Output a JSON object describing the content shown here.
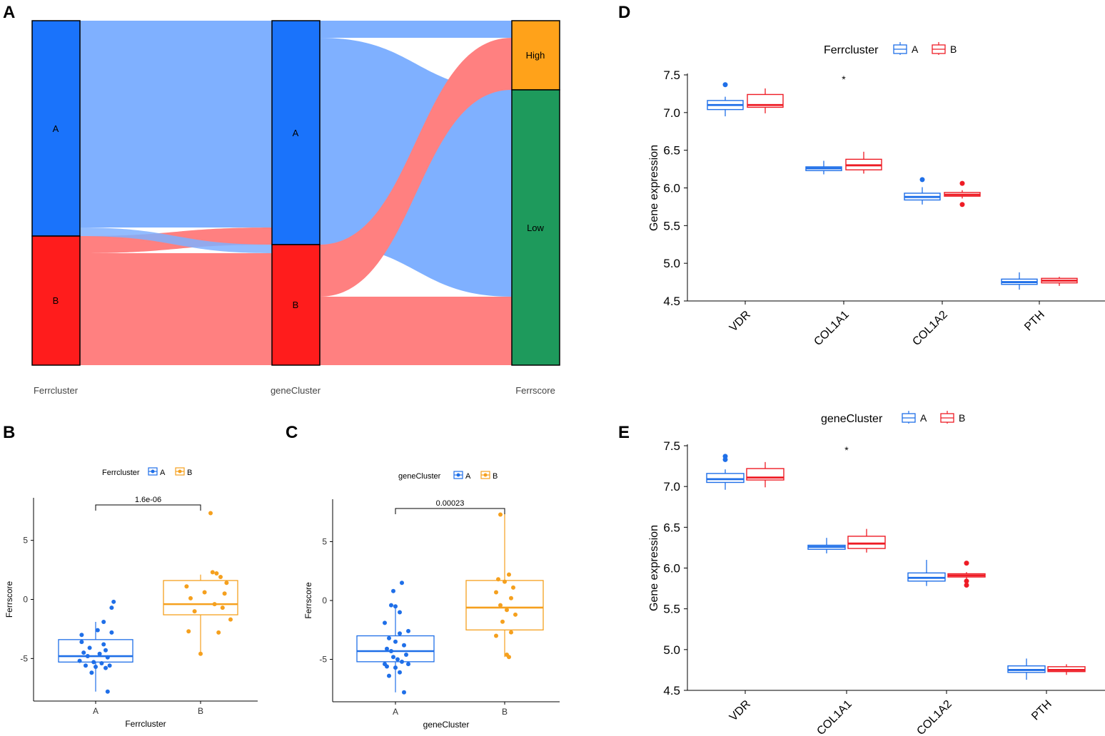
{
  "colors": {
    "blue": "#1f6fe8",
    "red": "#ee1c25",
    "orange": "#f5a01e",
    "green": "#1f9a5a",
    "sankey_blue_node": "#1a73fb",
    "sankey_red_node": "#ff1c1c",
    "sankey_blue_flow": "#7fb0ff",
    "sankey_red_flow": "#ff8080",
    "sankey_purple_flow": "#b85075",
    "sankey_high": "#ffa21a",
    "sankey_low": "#1e9a5c"
  },
  "panels": {
    "a": "A",
    "b": "B",
    "c": "C",
    "d": "D",
    "e": "E"
  },
  "chart_data": [
    {
      "id": "A",
      "type": "sankey",
      "axes": [
        "Ferrcluster",
        "geneCluster",
        "Ferrscore"
      ],
      "nodes": {
        "Ferrcluster": [
          {
            "label": "A",
            "value": 25
          },
          {
            "label": "B",
            "value": 15
          }
        ],
        "geneCluster": [
          {
            "label": "A",
            "value": 26
          },
          {
            "label": "B",
            "value": 14
          }
        ],
        "Ferrscore": [
          {
            "label": "High",
            "value": 8
          },
          {
            "label": "Low",
            "value": 32
          }
        ]
      },
      "flows": [
        {
          "from": "Ferrcluster A",
          "to": "geneCluster A",
          "value": 24
        },
        {
          "from": "Ferrcluster A",
          "to": "geneCluster B",
          "value": 1
        },
        {
          "from": "Ferrcluster B",
          "to": "geneCluster A",
          "value": 2
        },
        {
          "from": "Ferrcluster B",
          "to": "geneCluster B",
          "value": 13
        },
        {
          "from": "geneCluster A",
          "to": "High",
          "value": 2
        },
        {
          "from": "geneCluster A",
          "to": "Low",
          "value": 24
        },
        {
          "from": "geneCluster B",
          "to": "High",
          "value": 6
        },
        {
          "from": "geneCluster B",
          "to": "Low",
          "value": 8
        }
      ]
    },
    {
      "id": "B",
      "type": "box",
      "legend_title": "Ferrcluster",
      "legend": [
        "A",
        "B"
      ],
      "categories": [
        "A",
        "B"
      ],
      "xlabel": "Ferrcluster",
      "ylabel": "Ferrscore",
      "ylim": [
        -8.6,
        8.6
      ],
      "yticks": [
        -5,
        0,
        5
      ],
      "pvalue": "1.6e-06",
      "boxes": [
        {
          "q1": -5.3,
          "median": -4.8,
          "q3": -3.4,
          "lo": -7.8,
          "hi": -1.9
        },
        {
          "q1": -1.3,
          "median": -0.4,
          "q3": 1.6,
          "lo": -4.6,
          "hi": 2.1
        }
      ],
      "points": [
        [
          [
            0.9,
            -0.2,
            0.8,
            -0.7
          ],
          [
            0.4,
            -1.9,
            0.1,
            -2.6
          ],
          [
            0.8,
            -2.8,
            -0.7,
            -3.0
          ],
          [
            -0.7,
            -3.6,
            0.4,
            -3.8
          ],
          [
            -0.3,
            -4.1,
            0.5,
            -4.3
          ],
          [
            -0.6,
            -4.5,
            0.2,
            -4.6
          ],
          [
            -0.4,
            -4.8,
            0.6,
            -4.9
          ],
          [
            -0.8,
            -5.2,
            -0.1,
            -5.3
          ],
          [
            0.3,
            -5.4,
            0.7,
            -5.6
          ],
          [
            -0.5,
            -5.6,
            0.0,
            -5.7
          ],
          [
            0.5,
            -5.8,
            -0.2,
            -6.2
          ],
          [
            0.6,
            -7.8
          ]
        ],
        [
          [
            0.5,
            7.3
          ],
          [
            0.6,
            2.3
          ],
          [
            0.8,
            2.2
          ],
          [
            1.0,
            1.9
          ],
          [
            1.3,
            1.4
          ],
          [
            -0.7,
            1.1
          ],
          [
            0.2,
            0.6
          ],
          [
            1.2,
            0.5
          ],
          [
            -0.5,
            0.1
          ],
          [
            0.7,
            -0.4
          ],
          [
            1.1,
            -0.7
          ],
          [
            -0.3,
            -1.0
          ],
          [
            1.5,
            -1.7
          ],
          [
            -0.6,
            -2.7
          ],
          [
            0.9,
            -2.8
          ],
          [
            0.0,
            -4.6
          ]
        ]
      ]
    },
    {
      "id": "C",
      "type": "box",
      "legend_title": "geneCluster",
      "legend": [
        "A",
        "B"
      ],
      "categories": [
        "A",
        "B"
      ],
      "xlabel": "geneCluster",
      "ylabel": "Ferrscore",
      "ylim": [
        -8.6,
        8.6
      ],
      "yticks": [
        -5,
        0,
        5
      ],
      "pvalue": "0.00023",
      "boxes": [
        {
          "q1": -5.2,
          "median": -4.3,
          "q3": -3.0,
          "lo": -7.8,
          "hi": -0.4
        },
        {
          "q1": -2.5,
          "median": -0.6,
          "q3": 1.7,
          "lo": -4.8,
          "hi": 7.4
        }
      ],
      "points": [
        [
          [
            -0.1,
            0.8
          ],
          [
            0.3,
            1.5
          ],
          [
            -0.2,
            -0.4
          ],
          [
            0.0,
            -0.5
          ],
          [
            0.2,
            -1.0
          ],
          [
            -0.5,
            -1.9
          ],
          [
            0.6,
            -2.6
          ],
          [
            0.2,
            -2.8
          ],
          [
            -0.3,
            -3.2
          ],
          [
            0.0,
            -3.5
          ],
          [
            0.4,
            -3.8
          ],
          [
            -0.4,
            -4.1
          ],
          [
            -0.2,
            -4.3
          ],
          [
            0.5,
            -4.6
          ],
          [
            -0.1,
            -4.8
          ],
          [
            0.1,
            -5.0
          ],
          [
            0.3,
            -5.2
          ],
          [
            -0.5,
            -5.4
          ],
          [
            0.6,
            -5.4
          ],
          [
            -0.4,
            -5.6
          ],
          [
            0.0,
            -5.7
          ],
          [
            0.2,
            -6.1
          ],
          [
            -0.3,
            -6.4
          ],
          [
            0.4,
            -7.8
          ]
        ],
        [
          [
            -0.2,
            7.3
          ],
          [
            0.2,
            2.2
          ],
          [
            -0.3,
            1.8
          ],
          [
            0.0,
            1.6
          ],
          [
            0.4,
            1.1
          ],
          [
            -0.4,
            0.7
          ],
          [
            0.3,
            0.2
          ],
          [
            -0.2,
            -0.4
          ],
          [
            0.1,
            -0.8
          ],
          [
            0.5,
            -1.2
          ],
          [
            -0.1,
            -1.8
          ],
          [
            0.3,
            -2.7
          ],
          [
            -0.4,
            -3.0
          ],
          [
            0.1,
            -4.6
          ],
          [
            0.2,
            -4.8
          ]
        ]
      ]
    },
    {
      "id": "D",
      "type": "box",
      "legend_title": "Ferrcluster",
      "legend": [
        "A",
        "B"
      ],
      "categories": [
        "VDR",
        "COL1A1",
        "COL1A2",
        "PTH"
      ],
      "xlabel": "",
      "ylabel": "Gene expression",
      "ylim": [
        4.5,
        7.5
      ],
      "yticks": [
        4.5,
        5.0,
        5.5,
        6.0,
        6.5,
        7.0,
        7.5
      ],
      "significance": {
        "category": "COL1A1",
        "label": "*"
      },
      "series": [
        {
          "name": "A",
          "boxes": [
            {
              "q1": 7.04,
              "median": 7.1,
              "q3": 7.16,
              "lo": 6.95,
              "hi": 7.21,
              "out": [
                7.37
              ]
            },
            {
              "q1": 6.23,
              "median": 6.26,
              "q3": 6.28,
              "lo": 6.18,
              "hi": 6.36,
              "out": []
            },
            {
              "q1": 5.84,
              "median": 5.88,
              "q3": 5.93,
              "lo": 5.78,
              "hi": 6.01,
              "out": [
                6.11
              ]
            },
            {
              "q1": 4.72,
              "median": 4.75,
              "q3": 4.79,
              "lo": 4.65,
              "hi": 4.88,
              "out": []
            }
          ]
        },
        {
          "name": "B",
          "boxes": [
            {
              "q1": 7.07,
              "median": 7.1,
              "q3": 7.24,
              "lo": 6.99,
              "hi": 7.32,
              "out": []
            },
            {
              "q1": 6.24,
              "median": 6.3,
              "q3": 6.38,
              "lo": 6.19,
              "hi": 6.48,
              "out": []
            },
            {
              "q1": 5.89,
              "median": 5.91,
              "q3": 5.94,
              "lo": 5.86,
              "hi": 5.97,
              "out": [
                6.06,
                5.78
              ]
            },
            {
              "q1": 4.74,
              "median": 4.77,
              "q3": 4.8,
              "lo": 4.7,
              "hi": 4.82,
              "out": []
            }
          ]
        }
      ]
    },
    {
      "id": "E",
      "type": "box",
      "legend_title": "geneCluster",
      "legend": [
        "A",
        "B"
      ],
      "categories": [
        "VDR",
        "COL1A1",
        "COL1A2",
        "PTH"
      ],
      "xlabel": "",
      "ylabel": "Gene expression",
      "ylim": [
        4.5,
        7.5
      ],
      "yticks": [
        4.5,
        5.0,
        5.5,
        6.0,
        6.5,
        7.0,
        7.5
      ],
      "significance": {
        "category": "COL1A1",
        "label": "*"
      },
      "series": [
        {
          "name": "A",
          "boxes": [
            {
              "q1": 7.05,
              "median": 7.09,
              "q3": 7.16,
              "lo": 6.96,
              "hi": 7.21,
              "out": [
                7.37,
                7.33
              ]
            },
            {
              "q1": 6.23,
              "median": 6.26,
              "q3": 6.28,
              "lo": 6.18,
              "hi": 6.37,
              "out": []
            },
            {
              "q1": 5.84,
              "median": 5.88,
              "q3": 5.94,
              "lo": 5.78,
              "hi": 6.1,
              "out": []
            },
            {
              "q1": 4.72,
              "median": 4.75,
              "q3": 4.8,
              "lo": 4.63,
              "hi": 4.89,
              "out": []
            }
          ]
        },
        {
          "name": "B",
          "boxes": [
            {
              "q1": 7.08,
              "median": 7.11,
              "q3": 7.22,
              "lo": 6.99,
              "hi": 7.3,
              "out": []
            },
            {
              "q1": 6.24,
              "median": 6.3,
              "q3": 6.39,
              "lo": 6.19,
              "hi": 6.48,
              "out": []
            },
            {
              "q1": 5.89,
              "median": 5.91,
              "q3": 5.93,
              "lo": 5.87,
              "hi": 5.95,
              "out": [
                6.06,
                5.84,
                5.79
              ]
            },
            {
              "q1": 4.73,
              "median": 4.75,
              "q3": 4.79,
              "lo": 4.69,
              "hi": 4.82,
              "out": []
            }
          ]
        }
      ]
    }
  ]
}
